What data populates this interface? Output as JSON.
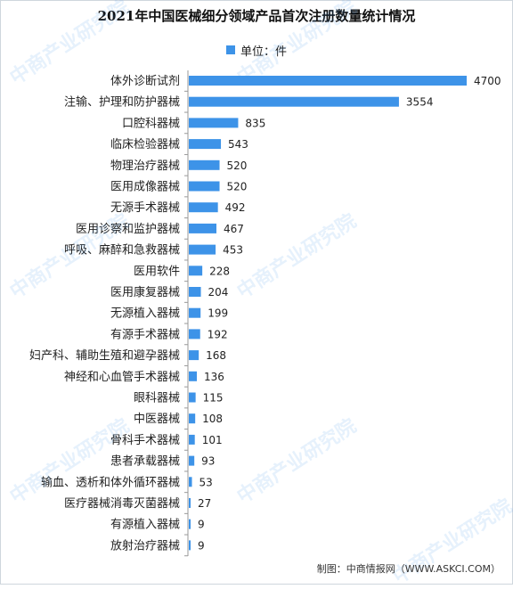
{
  "header": {
    "title": "2021年中国医械细分领域产品首次注册数量统计情况",
    "legend_label": "单位：件"
  },
  "footer": {
    "source": "制图：中商情报网（WWW.ASKCI.COM）"
  },
  "watermark": {
    "text": "中商产业研究院"
  },
  "colors": {
    "bar": "#3d93e8",
    "axis": "#999999"
  },
  "chart_data": {
    "type": "bar",
    "orientation": "horizontal",
    "title": "2021年中国医械细分领域产品首次注册数量统计情况",
    "legend": {
      "entries": [
        "单位：件"
      ],
      "placement": "top"
    },
    "grid": false,
    "xlim": [
      0,
      4700
    ],
    "categories": [
      "体外诊断试剂",
      "注输、护理和防护器械",
      "口腔科器械",
      "临床检验器械",
      "物理治疗器械",
      "医用成像器械",
      "无源手术器械",
      "医用诊察和监护器械",
      "呼吸、麻醉和急救器械",
      "医用软件",
      "医用康复器械",
      "无源植入器械",
      "有源手术器械",
      "妇产科、辅助生殖和避孕器械",
      "神经和心血管手术器械",
      "眼科器械",
      "中医器械",
      "骨科手术器械",
      "患者承载器械",
      "输血、透析和体外循环器械",
      "医疗器械消毒灭菌器械",
      "有源植入器械",
      "放射治疗器械"
    ],
    "values": [
      4700,
      3554,
      835,
      543,
      520,
      520,
      492,
      467,
      453,
      228,
      204,
      199,
      192,
      168,
      136,
      115,
      108,
      101,
      93,
      53,
      27,
      9,
      9
    ]
  }
}
